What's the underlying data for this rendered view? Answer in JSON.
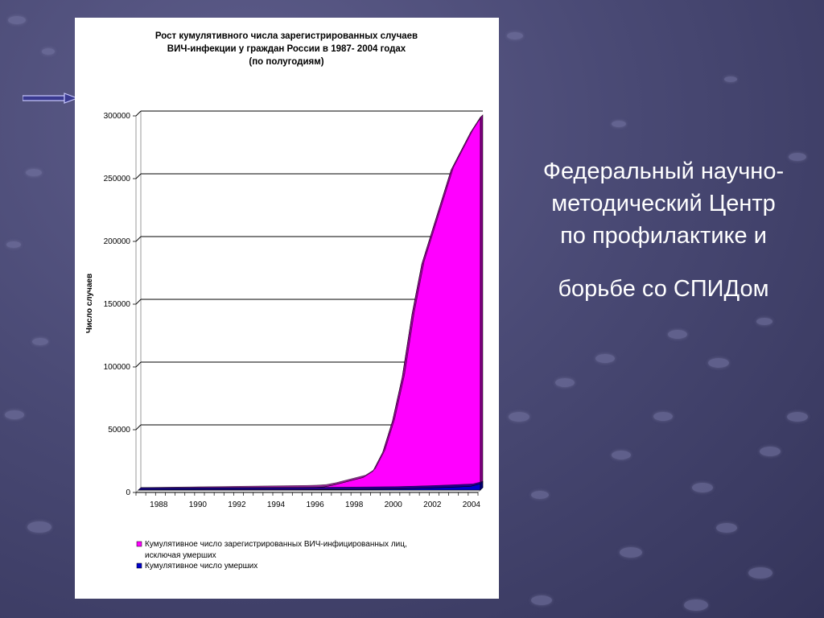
{
  "slide_text": {
    "line1": "Федеральный научно-",
    "line2": "методический Центр",
    "line3": "по профилактике и",
    "line4": "борьбе со СПИДом"
  },
  "chart_data": {
    "type": "area",
    "title_lines": [
      "Рост кумулятивного числа зарегистрированных случаев",
      "ВИЧ-инфекции у граждан России в 1987- 2004 годах",
      "(по полугодиям)"
    ],
    "ylabel": "Число случаев",
    "xlabel": "",
    "ylim": [
      0,
      300000
    ],
    "xlim": [
      1987,
      2004.5
    ],
    "y_ticks": [
      0,
      50000,
      100000,
      150000,
      200000,
      250000,
      300000
    ],
    "x_tick_labels": [
      "1988",
      "1990",
      "1992",
      "1994",
      "1996",
      "1998",
      "2000",
      "2002",
      "2004"
    ],
    "x_tick_values": [
      1988,
      1990,
      1992,
      1994,
      1996,
      1998,
      2000,
      2002,
      2004
    ],
    "grid": true,
    "legend_position": "bottom",
    "series": [
      {
        "name": "Кумулятивное число зарегистрированных ВИЧ-инфицированных лиц, исключая умерших",
        "name_lines": [
          "Кумулятивное число зарегистрированных ВИЧ-инфицированных лиц,",
          "исключая умерших"
        ],
        "color": "#ff00ff",
        "x": [
          1987,
          1987.5,
          1988,
          1988.5,
          1989,
          1989.5,
          1990,
          1990.5,
          1991,
          1991.5,
          1992,
          1992.5,
          1993,
          1993.5,
          1994,
          1994.5,
          1995,
          1995.5,
          1996,
          1996.5,
          1997,
          1997.5,
          1998,
          1998.5,
          1999,
          1999.5,
          2000,
          2000.5,
          2001,
          2001.5,
          2002,
          2002.5,
          2003,
          2003.5,
          2004,
          2004.5
        ],
        "values": [
          100,
          200,
          300,
          400,
          500,
          600,
          700,
          800,
          900,
          1000,
          1100,
          1200,
          1300,
          1400,
          1500,
          1600,
          1700,
          1800,
          2000,
          2500,
          4000,
          6000,
          8000,
          10000,
          15000,
          30000,
          55000,
          90000,
          140000,
          180000,
          205000,
          230000,
          255000,
          270000,
          285000,
          297000
        ]
      },
      {
        "name": "Кумулятивное число умерших",
        "name_lines": [
          "Кумулятивное число умерших"
        ],
        "color": "#0000cc",
        "x": [
          1987,
          1990,
          1995,
          1998,
          2000,
          2001,
          2002,
          2003,
          2004,
          2004.5
        ],
        "values": [
          0,
          50,
          200,
          500,
          800,
          1200,
          1700,
          2300,
          3000,
          5000
        ]
      }
    ]
  },
  "colors": {
    "primary_fill": "#ff00ff",
    "primary_side": "#800080",
    "deaths_fill": "#0000cc",
    "background": "#4a4a75"
  }
}
